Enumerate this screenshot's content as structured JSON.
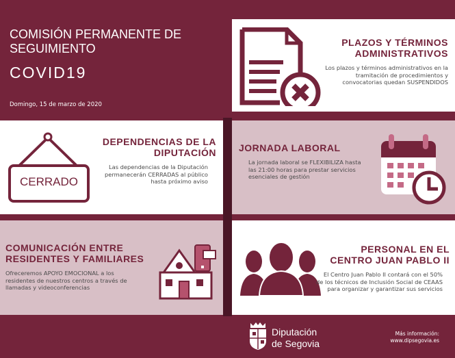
{
  "header": {
    "title": "COMISIÓN PERMANENTE DE SEGUIMIENTO",
    "subtitle": "COVID19",
    "date": "Domingo, 15 de marzo de 2020"
  },
  "cards": [
    {
      "title": "PLAZOS Y TÉRMINOS ADMINISTRATIVOS",
      "text": "Los plazos y términos administrativos en la tramitación de procedimientos y convocatorias quedan SUSPENDIDOS",
      "icon": "document-cancel-icon"
    },
    {
      "title": "DEPENDENCIAS DE LA DIPUTACIÓN",
      "text": "Las dependencias de la Diputación permanecerán CERRADAS al público hasta próximo aviso",
      "icon": "closed-sign-icon",
      "sign_label": "CERRADO"
    },
    {
      "title": "JORNADA LABORAL",
      "text": "La jornada laboral se FLEXIBILIZA hasta las 21:00 horas para prestar servicios esenciales de gestión",
      "icon": "calendar-clock-icon"
    },
    {
      "title": "COMUNICACIÓN ENTRE RESIDENTES Y FAMILIARES",
      "text": "Ofreceremos APOYO EMOCIONAL a los residentes de nuestros centros a través de llamadas y videoconferencias",
      "icon": "house-phone-icon"
    },
    {
      "title": "PERSONAL EN EL CENTRO JUAN PABLO II",
      "text": "El Centro Juan Pablo II contará con el 50% de los técnicos de Inclusión Social de CEAAS para organizar y garantizar sus servicios",
      "icon": "people-group-icon"
    }
  ],
  "footer": {
    "logo_line1": "Diputación",
    "logo_line2": "de Segovia",
    "more_label": "Más información:",
    "url": "www.dipsegovia.es"
  },
  "colors": {
    "maroon": "#74243b",
    "pink": "#d8bfc6",
    "dark": "#4a1626",
    "accent": "#b5526d"
  }
}
